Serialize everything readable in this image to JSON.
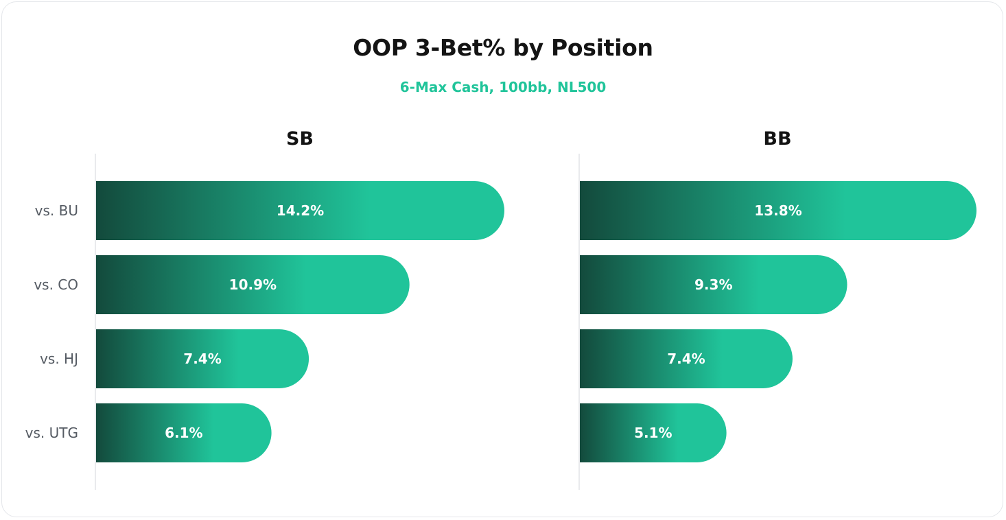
{
  "chart_data": {
    "type": "bar",
    "orientation": "horizontal",
    "title": "OOP 3-Bet% by Position",
    "subtitle": "6-Max Cash, 100bb, NL500",
    "categories": [
      "vs. BU",
      "vs. CO",
      "vs. HJ",
      "vs. UTG"
    ],
    "xlim": [
      0,
      14.5
    ],
    "grid": false,
    "panels": [
      {
        "name": "SB",
        "values": [
          14.2,
          10.9,
          7.4,
          6.1
        ],
        "labels": [
          "14.2%",
          "10.9%",
          "7.4%",
          "6.1%"
        ]
      },
      {
        "name": "BB",
        "values": [
          13.8,
          9.3,
          7.4,
          5.1
        ],
        "labels": [
          "13.8%",
          "9.3%",
          "7.4%",
          "5.1%"
        ]
      }
    ],
    "colors": {
      "bar_dark": "#134a3c",
      "bar_light": "#20c49a",
      "subtitle": "#20c49a",
      "axis": "#e2e4e7"
    }
  }
}
